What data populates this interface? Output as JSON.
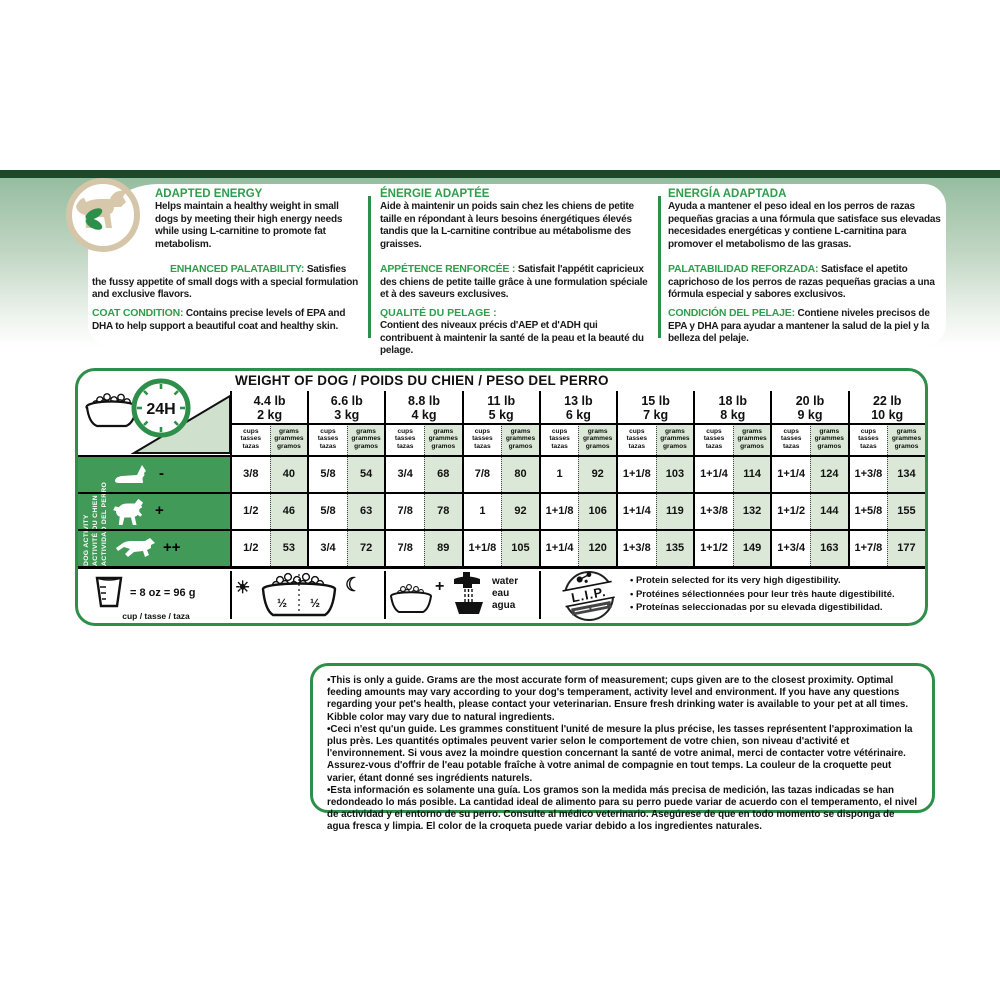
{
  "colors": {
    "dark_bar": "#1a4a2a",
    "band_green": "#96bda0",
    "heading_green": "#2f9e4c",
    "table_border_green": "#2e8f4a",
    "activity_green": "#419a58",
    "grams_cell_green": "#dce8d7",
    "badge_tan": "#d6c6a9"
  },
  "benefits": {
    "en": {
      "s1_title": "ADAPTED ENERGY",
      "s1_body": "Helps maintain a healthy weight in small dogs by meeting their high energy needs while using L-carnitine to promote fat metabolism.",
      "s2_title": "ENHANCED PALATABILITY:",
      "s2_body": " Satisfies the fussy appetite of small dogs with a special formulation and exclusive flavors.",
      "s3_title": "COAT CONDITION:",
      "s3_body": " Contains precise levels of EPA and DHA to help support a beautiful coat and healthy skin."
    },
    "fr": {
      "s1_title": "ÉNERGIE ADAPTÉE",
      "s1_body": "Aide à maintenir un poids sain chez les chiens de petite taille en répondant à leurs besoins énergétiques élevés tandis que la L-carnitine contribue au métabolisme des graisses.",
      "s2_title": "APPÉTENCE RENFORCÉE :",
      "s2_body": " Satisfait l'appétit capricieux des chiens de petite taille grâce à une formulation spéciale et à des saveurs exclusives.",
      "s3_title": "QUALITÉ DU PELAGE :",
      "s3_body": "Contient des niveaux précis d'AEP et d'ADH qui contribuent à maintenir la santé de la peau et la beauté du pelage."
    },
    "es": {
      "s1_title": "ENERGÍA ADAPTADA",
      "s1_body": "Ayuda a mantener el peso ideal en los perros de razas pequeñas gracias a una fórmula que satisface sus elevadas necesidades energéticas y contiene L-carnitina para promover el metabolismo de las grasas.",
      "s2_title": "PALATABILIDAD REFORZADA:",
      "s2_body": " Satisface el apetito caprichoso de los perros de razas pequeñas gracias a una fórmula especial y sabores exclusivos.",
      "s3_title": "CONDICIÓN DEL PELAJE:",
      "s3_body": " Contiene niveles precisos de EPA y DHA para ayudar a mantener la salud de la piel y la belleza del pelaje."
    }
  },
  "table": {
    "title": "WEIGHT OF DOG / POIDS DU CHIEN / PESO DEL PERRO",
    "clock_label": "24H",
    "activity_label_lines": [
      "DOG ACTIVITY",
      "ACTIVITÉ DU CHIEN",
      "ACTIVIDAD DEL PERRO"
    ],
    "unit_header": {
      "cups": [
        "cups",
        "tasses",
        "tazas"
      ],
      "grams": [
        "grams",
        "grammes",
        "gramos"
      ]
    },
    "weights": [
      {
        "lb": "4.4 lb",
        "kg": "2 kg"
      },
      {
        "lb": "6.6 lb",
        "kg": "3 kg"
      },
      {
        "lb": "8.8 lb",
        "kg": "4 kg"
      },
      {
        "lb": "11 lb",
        "kg": "5 kg"
      },
      {
        "lb": "13 lb",
        "kg": "6 kg"
      },
      {
        "lb": "15 lb",
        "kg": "7 kg"
      },
      {
        "lb": "18 lb",
        "kg": "8 kg"
      },
      {
        "lb": "20 lb",
        "kg": "9 kg"
      },
      {
        "lb": "22 lb",
        "kg": "10 kg"
      }
    ],
    "rows": [
      {
        "symbol": "-",
        "values": [
          [
            "3/8",
            "40"
          ],
          [
            "5/8",
            "54"
          ],
          [
            "3/4",
            "68"
          ],
          [
            "7/8",
            "80"
          ],
          [
            "1",
            "92"
          ],
          [
            "1+1/8",
            "103"
          ],
          [
            "1+1/4",
            "114"
          ],
          [
            "1+1/4",
            "124"
          ],
          [
            "1+3/8",
            "134"
          ]
        ]
      },
      {
        "symbol": "+",
        "values": [
          [
            "1/2",
            "46"
          ],
          [
            "5/8",
            "63"
          ],
          [
            "7/8",
            "78"
          ],
          [
            "1",
            "92"
          ],
          [
            "1+1/8",
            "106"
          ],
          [
            "1+1/4",
            "119"
          ],
          [
            "1+3/8",
            "132"
          ],
          [
            "1+1/2",
            "144"
          ],
          [
            "1+5/8",
            "155"
          ]
        ]
      },
      {
        "symbol": "++",
        "values": [
          [
            "1/2",
            "53"
          ],
          [
            "3/4",
            "72"
          ],
          [
            "7/8",
            "89"
          ],
          [
            "1+1/8",
            "105"
          ],
          [
            "1+1/4",
            "120"
          ],
          [
            "1+3/8",
            "135"
          ],
          [
            "1+1/2",
            "149"
          ],
          [
            "1+3/4",
            "163"
          ],
          [
            "1+7/8",
            "177"
          ]
        ]
      }
    ]
  },
  "legend": {
    "cup_equivalence": "= 8 oz = 96 g",
    "cup_label": "cup / tasse / taza",
    "bowls": {
      "am": "½",
      "pm": "½"
    },
    "water": [
      "water",
      "eau",
      "agua"
    ],
    "lip_label": "L.I.P.",
    "lip_bullets": [
      "• Protein selected for its very high digestibility.",
      "• Protéines sélectionnées pour leur très haute digestibilité.",
      "• Proteínas seleccionadas por su elevada digestibilidad."
    ]
  },
  "disclaimer": {
    "en": "•This is only a guide. Grams are the most accurate form of measurement; cups given are to the closest proximity. Optimal feeding amounts may vary according to your dog's temperament, activity level and environment. If you have any questions regarding your pet's health, please contact your veterinarian. Ensure fresh drinking water is available to your pet at all times. Kibble color may vary due to natural ingredients.",
    "fr": "•Ceci n'est qu'un guide. Les grammes constituent l'unité de mesure la plus précise, les tasses représentent l'approximation la plus près. Les quantités optimales peuvent varier selon le comportement de votre chien, son niveau d'activité et l'environnement. Si vous avez la moindre question concernant la santé de votre animal, merci de contacter votre vétérinaire. Assurez-vous d'offrir de l'eau potable fraîche à votre animal de compagnie en tout temps. La couleur de la croquette peut varier, étant donné ses ingrédients naturels.",
    "es": "•Esta información es solamente una guía. Los gramos son la medida más precisa de medición, las tazas indicadas se han redondeado lo más posible. La cantidad ideal de alimento para su perro puede variar de acuerdo con el temperamento, el nivel de actividad y el entorno de su perro. Consulte al médico veterinario. Asegúrese de que en todo momento se disponga de agua fresca y limpia. El color de la croqueta puede variar debido a los ingredientes naturales."
  }
}
